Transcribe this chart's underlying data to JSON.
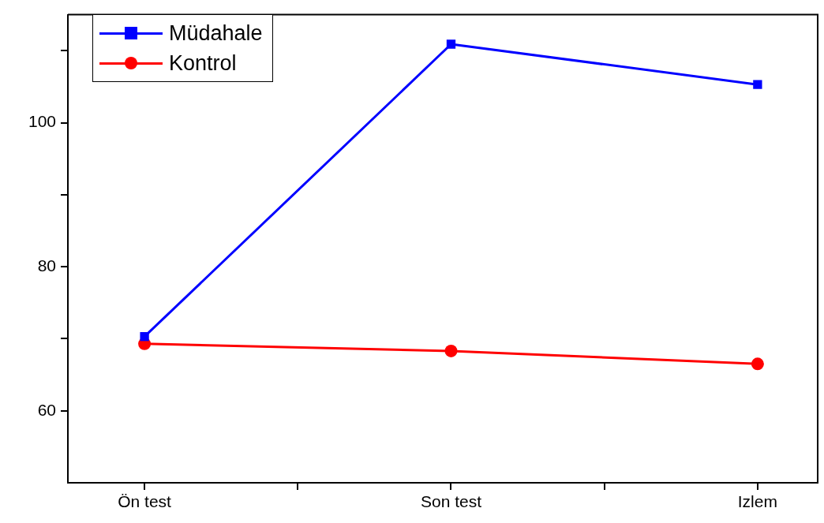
{
  "chart_data": {
    "type": "line",
    "categories": [
      "Ön test",
      "Son test",
      "Izlem"
    ],
    "series": [
      {
        "name": "Müdahale",
        "color": "#0000ff",
        "marker": "square",
        "values": [
          70.3,
          110.9,
          105.3
        ]
      },
      {
        "name": "Kontrol",
        "color": "#ff0000",
        "marker": "circle",
        "values": [
          69.3,
          68.3,
          66.5
        ]
      }
    ],
    "ylim": [
      50,
      115
    ],
    "yticks": [
      {
        "value": 60,
        "label": "60"
      },
      {
        "value": 70,
        "label": null
      },
      {
        "value": 80,
        "label": "80"
      },
      {
        "value": 90,
        "label": null
      },
      {
        "value": 100,
        "label": "100"
      },
      {
        "value": 110,
        "label": null
      }
    ],
    "legend": "top left",
    "grid": false
  }
}
